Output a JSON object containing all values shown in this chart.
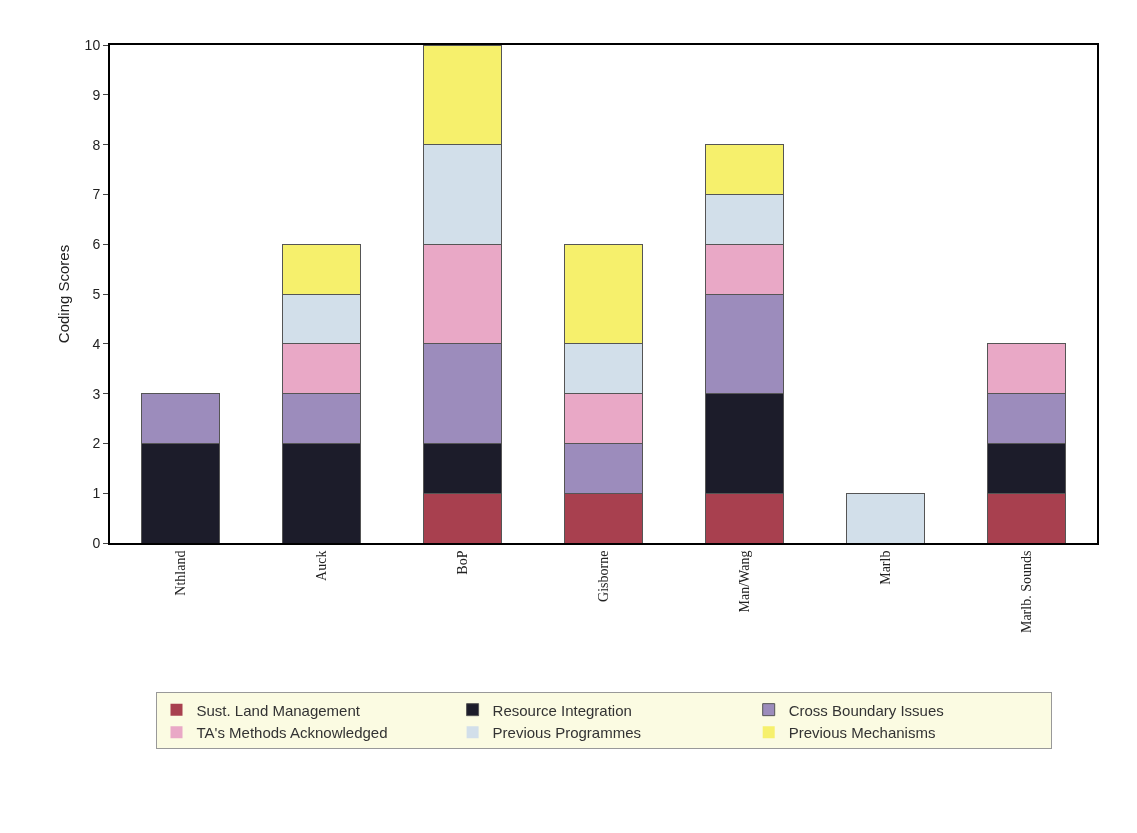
{
  "chart_data": {
    "type": "bar",
    "stacked": true,
    "ylabel": "Coding Scores",
    "categories": [
      "Nthland",
      "Auck",
      "BoP",
      "Gisborne",
      "Man/Wang",
      "Marlb",
      "Marlb. Sounds"
    ],
    "series": [
      {
        "name": "Sust. Land Management",
        "color": "#a8404f",
        "values": [
          0,
          0,
          1,
          1,
          1,
          0,
          1
        ]
      },
      {
        "name": "Resource Integration",
        "color": "#1c1c2a",
        "values": [
          2,
          2,
          1,
          0,
          2,
          0,
          1
        ]
      },
      {
        "name": "Cross Boundary Issues",
        "color": "#9c8cbc",
        "values": [
          1,
          1,
          2,
          1,
          2,
          0,
          1
        ]
      },
      {
        "name": "TA's Methods Acknowledged",
        "color": "#e9a8c6",
        "values": [
          0,
          1,
          2,
          1,
          1,
          0,
          1
        ]
      },
      {
        "name": "Previous Programmes",
        "color": "#d2dfea",
        "values": [
          0,
          1,
          2,
          1,
          1,
          1,
          0
        ]
      },
      {
        "name": "Previous Mechanisms",
        "color": "#f6f06c",
        "values": [
          0,
          1,
          2,
          2,
          1,
          0,
          0
        ]
      }
    ],
    "ylim": [
      0,
      10
    ],
    "yticks": [
      0,
      1,
      2,
      3,
      4,
      5,
      6,
      7,
      8,
      9,
      10
    ],
    "grid": false,
    "legend": "bottom"
  }
}
